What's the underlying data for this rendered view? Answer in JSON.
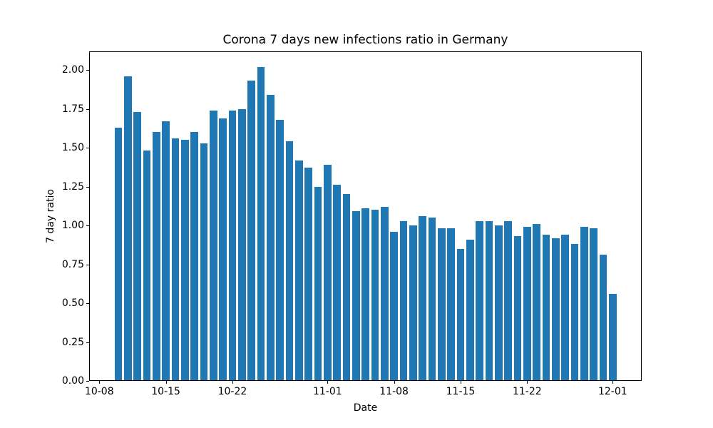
{
  "chart_data": {
    "type": "bar",
    "title": "Corona 7 days new infections ratio in Germany",
    "xlabel": "Date",
    "ylabel": "7 day ratio",
    "bar_color": "#1f77b4",
    "background_color": "#ffffff",
    "categories": [
      "10-10",
      "10-11",
      "10-12",
      "10-13",
      "10-14",
      "10-15",
      "10-16",
      "10-17",
      "10-18",
      "10-19",
      "10-20",
      "10-21",
      "10-22",
      "10-23",
      "10-24",
      "10-25",
      "10-26",
      "10-27",
      "10-28",
      "10-29",
      "10-30",
      "10-31",
      "11-01",
      "11-02",
      "11-03",
      "11-04",
      "11-05",
      "11-06",
      "11-07",
      "11-08",
      "11-09",
      "11-10",
      "11-11",
      "11-12",
      "11-13",
      "11-14",
      "11-15",
      "11-16",
      "11-17",
      "11-18",
      "11-19",
      "11-20",
      "11-21",
      "11-22",
      "11-23",
      "11-24",
      "11-25",
      "11-26",
      "11-27",
      "11-28",
      "11-29",
      "11-30",
      "12-01"
    ],
    "values": [
      1.63,
      1.96,
      1.73,
      1.48,
      1.6,
      1.67,
      1.56,
      1.55,
      1.6,
      1.53,
      1.74,
      1.69,
      1.74,
      1.75,
      1.93,
      2.02,
      1.84,
      1.68,
      1.54,
      1.42,
      1.37,
      1.25,
      1.39,
      1.26,
      1.2,
      1.09,
      1.11,
      1.1,
      1.12,
      0.96,
      1.03,
      1.0,
      1.06,
      1.05,
      0.98,
      0.98,
      0.85,
      0.91,
      1.03,
      1.03,
      1.0,
      1.03,
      0.93,
      0.99,
      1.01,
      0.94,
      0.92,
      0.94,
      0.88,
      0.99,
      0.98,
      0.81,
      0.56
    ],
    "x_tick_labels": [
      "10-08",
      "10-15",
      "10-22",
      "11-01",
      "11-08",
      "11-15",
      "11-22",
      "12-01"
    ],
    "y_tick_labels": [
      "0.00",
      "0.25",
      "0.50",
      "0.75",
      "1.00",
      "1.25",
      "1.50",
      "1.75",
      "2.00"
    ],
    "ylim": [
      0,
      2.12
    ],
    "xlim_days_from_10_08": [
      -1.07,
      57.05
    ],
    "bar_width_days": 0.8,
    "grid": false,
    "legend": false
  }
}
